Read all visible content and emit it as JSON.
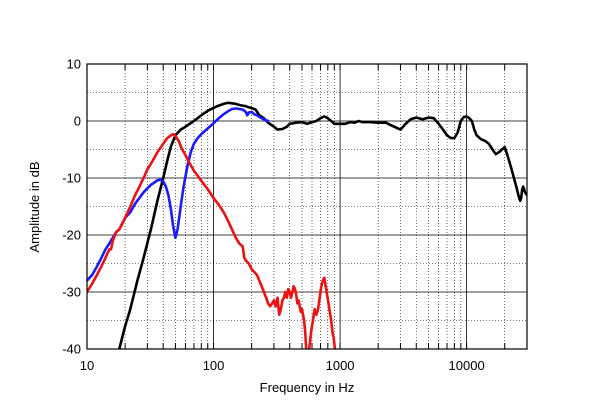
{
  "chart_data": {
    "type": "line",
    "title": "",
    "xlabel": "Frequency in Hz",
    "ylabel": "Amplitude in dB",
    "x_scale": "log",
    "xlim": [
      10,
      30000
    ],
    "ylim": [
      -40,
      10
    ],
    "x_ticks": [
      10,
      100,
      1000,
      10000
    ],
    "x_tick_labels": [
      "10",
      "100",
      "1000",
      "10000"
    ],
    "y_ticks": [
      10,
      0,
      -10,
      -20,
      -30,
      -40
    ],
    "y_tick_labels": [
      "10",
      "0",
      "-10",
      "-20",
      "-30",
      "-40"
    ],
    "grid": true,
    "legend": "none",
    "series": [
      {
        "color": "#000000",
        "points": [
          [
            18,
            -40
          ],
          [
            20,
            -36
          ],
          [
            22,
            -33
          ],
          [
            25,
            -28
          ],
          [
            28,
            -24
          ],
          [
            32,
            -19
          ],
          [
            36,
            -14
          ],
          [
            40,
            -10
          ],
          [
            43,
            -7
          ],
          [
            46,
            -4.5
          ],
          [
            50,
            -2.5
          ],
          [
            55,
            -1.5
          ],
          [
            60,
            -1
          ],
          [
            70,
            0
          ],
          [
            80,
            1
          ],
          [
            90,
            1.8
          ],
          [
            100,
            2.3
          ],
          [
            110,
            2.7
          ],
          [
            120,
            3
          ],
          [
            130,
            3.2
          ],
          [
            140,
            3.1
          ],
          [
            150,
            3
          ],
          [
            160,
            2.8
          ],
          [
            170,
            2.7
          ],
          [
            180,
            2.6
          ],
          [
            190,
            2.4
          ],
          [
            200,
            2.3
          ],
          [
            215,
            2
          ],
          [
            230,
            1
          ],
          [
            250,
            0.5
          ],
          [
            270,
            -0.3
          ],
          [
            300,
            -1
          ],
          [
            320,
            -1.5
          ],
          [
            350,
            -1.4
          ],
          [
            380,
            -1
          ],
          [
            400,
            -0.5
          ],
          [
            450,
            -0.3
          ],
          [
            500,
            -0.2
          ],
          [
            550,
            -0.5
          ],
          [
            600,
            -0.2
          ],
          [
            650,
            0
          ],
          [
            700,
            0.5
          ],
          [
            750,
            0.8
          ],
          [
            800,
            0.5
          ],
          [
            850,
            0
          ],
          [
            900,
            -0.5
          ],
          [
            1000,
            -0.5
          ],
          [
            1100,
            -0.5
          ],
          [
            1200,
            -0.2
          ],
          [
            1300,
            -0.3
          ],
          [
            1400,
            0
          ],
          [
            1500,
            -0.2
          ],
          [
            1700,
            -0.2
          ],
          [
            2000,
            -0.3
          ],
          [
            2300,
            -0.3
          ],
          [
            2500,
            -0.7
          ],
          [
            2800,
            -1.2
          ],
          [
            3000,
            -1.5
          ],
          [
            3300,
            -0.5
          ],
          [
            3600,
            0.3
          ],
          [
            4000,
            0.6
          ],
          [
            4500,
            0.3
          ],
          [
            5000,
            0.6
          ],
          [
            5500,
            0.5
          ],
          [
            6000,
            -0.5
          ],
          [
            6500,
            -1.5
          ],
          [
            7000,
            -2.5
          ],
          [
            7500,
            -3
          ],
          [
            8000,
            -3
          ],
          [
            8500,
            -2
          ],
          [
            9000,
            0
          ],
          [
            9500,
            0.7
          ],
          [
            10000,
            0.8
          ],
          [
            10500,
            0.5
          ],
          [
            11000,
            0
          ],
          [
            11500,
            -1.5
          ],
          [
            12000,
            -2.5
          ],
          [
            13000,
            -3.2
          ],
          [
            14000,
            -3.5
          ],
          [
            15000,
            -4
          ],
          [
            16000,
            -5
          ],
          [
            17000,
            -5.8
          ],
          [
            18000,
            -5.5
          ],
          [
            19000,
            -5
          ],
          [
            20000,
            -4.6
          ],
          [
            21000,
            -6
          ],
          [
            22000,
            -7.5
          ],
          [
            23000,
            -9
          ],
          [
            24000,
            -10.5
          ],
          [
            25000,
            -12
          ],
          [
            26000,
            -13.5
          ],
          [
            26500,
            -14
          ],
          [
            27000,
            -13.5
          ],
          [
            27500,
            -12
          ],
          [
            28000,
            -11.5
          ],
          [
            29000,
            -12.5
          ],
          [
            30000,
            -13
          ]
        ]
      },
      {
        "color": "#1a1aff",
        "points": [
          [
            10,
            -28
          ],
          [
            11,
            -27
          ],
          [
            12,
            -25.5
          ],
          [
            13,
            -24
          ],
          [
            14,
            -22.5
          ],
          [
            15,
            -21.5
          ],
          [
            16,
            -20.5
          ],
          [
            17,
            -19.5
          ],
          [
            18,
            -19
          ],
          [
            19,
            -18
          ],
          [
            20,
            -17
          ],
          [
            22,
            -16
          ],
          [
            24,
            -14.5
          ],
          [
            26,
            -13.5
          ],
          [
            28,
            -12.5
          ],
          [
            30,
            -11.8
          ],
          [
            32,
            -11.2
          ],
          [
            34,
            -10.8
          ],
          [
            36,
            -10.4
          ],
          [
            38,
            -10.3
          ],
          [
            40,
            -10.6
          ],
          [
            42,
            -11.5
          ],
          [
            44,
            -13
          ],
          [
            46,
            -15.5
          ],
          [
            48,
            -18.5
          ],
          [
            50,
            -20.5
          ],
          [
            52,
            -19
          ],
          [
            55,
            -15
          ],
          [
            58,
            -11.5
          ],
          [
            62,
            -8
          ],
          [
            66,
            -5.5
          ],
          [
            70,
            -4
          ],
          [
            75,
            -3
          ],
          [
            80,
            -2.3
          ],
          [
            90,
            -1.3
          ],
          [
            100,
            -0.4
          ],
          [
            110,
            0.5
          ],
          [
            120,
            1.2
          ],
          [
            130,
            1.7
          ],
          [
            140,
            2.1
          ],
          [
            150,
            2.2
          ],
          [
            160,
            2.1
          ],
          [
            170,
            2
          ],
          [
            180,
            1.6
          ],
          [
            185,
            1
          ],
          [
            190,
            1.5
          ],
          [
            200,
            1.6
          ],
          [
            210,
            1.2
          ],
          [
            220,
            1
          ],
          [
            230,
            0.7
          ],
          [
            250,
            0.3
          ],
          [
            270,
            0
          ]
        ]
      },
      {
        "color": "#ee1111",
        "points": [
          [
            10,
            -30
          ],
          [
            11,
            -28.5
          ],
          [
            12,
            -27
          ],
          [
            13,
            -25.5
          ],
          [
            14,
            -24
          ],
          [
            15,
            -22.5
          ],
          [
            15.5,
            -22.5
          ],
          [
            16,
            -21
          ],
          [
            17,
            -19.5
          ],
          [
            18,
            -19
          ],
          [
            20,
            -17
          ],
          [
            22,
            -15
          ],
          [
            24,
            -13
          ],
          [
            26,
            -11.5
          ],
          [
            28,
            -10
          ],
          [
            30,
            -8.5
          ],
          [
            33,
            -7
          ],
          [
            36,
            -5.5
          ],
          [
            40,
            -4
          ],
          [
            43,
            -3
          ],
          [
            46,
            -2.5
          ],
          [
            48,
            -2.3
          ],
          [
            50,
            -2.6
          ],
          [
            53,
            -3.5
          ],
          [
            56,
            -4.8
          ],
          [
            60,
            -6
          ],
          [
            65,
            -7.5
          ],
          [
            70,
            -8.7
          ],
          [
            80,
            -10.5
          ],
          [
            90,
            -12
          ],
          [
            100,
            -13.5
          ],
          [
            110,
            -14.7
          ],
          [
            120,
            -16
          ],
          [
            130,
            -17.5
          ],
          [
            140,
            -19
          ],
          [
            150,
            -20.5
          ],
          [
            160,
            -21.5
          ],
          [
            170,
            -22
          ],
          [
            175,
            -24
          ],
          [
            180,
            -24.5
          ],
          [
            190,
            -25
          ],
          [
            200,
            -26
          ],
          [
            210,
            -26.5
          ],
          [
            220,
            -27
          ],
          [
            230,
            -28
          ],
          [
            240,
            -29
          ],
          [
            250,
            -30
          ],
          [
            260,
            -31
          ],
          [
            270,
            -32
          ],
          [
            280,
            -32.5
          ],
          [
            290,
            -32
          ],
          [
            300,
            -31.5
          ],
          [
            310,
            -32.5
          ],
          [
            320,
            -31
          ],
          [
            330,
            -34
          ],
          [
            340,
            -33
          ],
          [
            350,
            -31.5
          ],
          [
            360,
            -31
          ],
          [
            370,
            -30
          ],
          [
            380,
            -31
          ],
          [
            390,
            -29.5
          ],
          [
            400,
            -30
          ],
          [
            410,
            -31
          ],
          [
            420,
            -30
          ],
          [
            430,
            -29
          ],
          [
            440,
            -29.5
          ],
          [
            450,
            -30.5
          ],
          [
            460,
            -32
          ],
          [
            470,
            -31.5
          ],
          [
            480,
            -32.5
          ],
          [
            490,
            -33.5
          ],
          [
            500,
            -33
          ],
          [
            520,
            -35
          ],
          [
            530,
            -37
          ],
          [
            540,
            -40
          ]
        ]
      },
      {
        "color": "#ee1111",
        "points": [
          [
            570,
            -40
          ],
          [
            590,
            -37
          ],
          [
            610,
            -35
          ],
          [
            630,
            -33
          ],
          [
            650,
            -34
          ],
          [
            670,
            -33
          ],
          [
            690,
            -31
          ],
          [
            710,
            -29
          ],
          [
            730,
            -28
          ],
          [
            750,
            -27.5
          ],
          [
            770,
            -29
          ],
          [
            790,
            -30.5
          ],
          [
            810,
            -32
          ],
          [
            830,
            -33.5
          ],
          [
            850,
            -35
          ],
          [
            870,
            -37
          ],
          [
            890,
            -38
          ],
          [
            910,
            -40
          ]
        ]
      }
    ]
  }
}
